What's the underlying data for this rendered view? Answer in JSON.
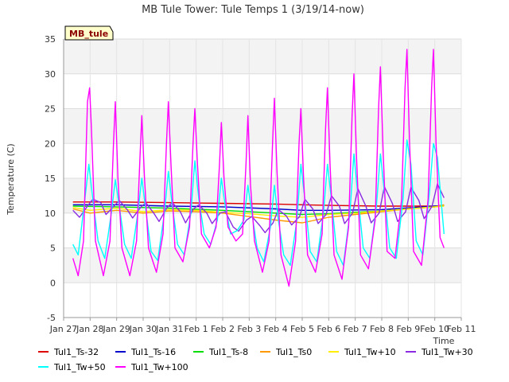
{
  "chart_data": {
    "type": "line",
    "title": "MB Tule Tower: Tule Temps 1 (3/19/14-now)",
    "xlabel": "Time",
    "ylabel": "Temperature (C)",
    "tag": "MB_tule",
    "x_ticks": [
      "Jan 27",
      "Jan 28",
      "Jan 29",
      "Jan 30",
      "Jan 31",
      "Feb 1",
      "Feb 2",
      "Feb 3",
      "Feb 4",
      "Feb 5",
      "Feb 6",
      "Feb 7",
      "Feb 8",
      "Feb 9",
      "Feb 10",
      "Feb 11"
    ],
    "xlim": [
      0,
      15
    ],
    "ylim": [
      -5,
      35
    ],
    "y_ticks": [
      -5,
      0,
      5,
      10,
      15,
      20,
      25,
      30,
      35
    ],
    "grid": true,
    "legend_position": "bottom",
    "series": [
      {
        "name": "Tul1_Ts-32",
        "color": "#dd0000",
        "x": [
          0.35,
          2,
          4,
          6,
          8,
          10,
          12,
          14,
          14.35
        ],
        "y": [
          11.6,
          11.6,
          11.5,
          11.4,
          11.3,
          11.1,
          11.0,
          11.0,
          11.1
        ]
      },
      {
        "name": "Tul1_Ts-16",
        "color": "#0000cc",
        "x": [
          0.35,
          2,
          4,
          6,
          8,
          9,
          10,
          12,
          14,
          14.35
        ],
        "y": [
          11.2,
          11.2,
          11.0,
          10.9,
          10.6,
          10.4,
          10.4,
          10.5,
          11.0,
          11.1
        ]
      },
      {
        "name": "Tul1_Ts-8",
        "color": "#00dd00",
        "x": [
          0.35,
          2,
          4,
          6,
          8,
          9,
          10,
          12,
          14,
          14.35
        ],
        "y": [
          11.0,
          10.9,
          10.7,
          10.4,
          10.0,
          9.8,
          9.9,
          10.3,
          10.9,
          11.1
        ]
      },
      {
        "name": "Tul1_Ts0",
        "color": "#ff9900",
        "x": [
          0.35,
          1,
          2,
          3,
          4,
          5,
          6,
          7,
          8,
          9,
          10,
          11,
          12,
          13,
          14,
          14.35
        ],
        "y": [
          10.6,
          10.0,
          10.4,
          10.0,
          10.3,
          10.2,
          10.0,
          9.5,
          9.0,
          8.6,
          9.4,
          9.8,
          10.2,
          10.6,
          10.9,
          11.2
        ]
      },
      {
        "name": "Tul1_Tw+10",
        "color": "#ffee00",
        "x": [
          0.35,
          1,
          2,
          3,
          4,
          5,
          6,
          7,
          8,
          9,
          10,
          11,
          12,
          13,
          14,
          14.35
        ],
        "y": [
          10.8,
          10.4,
          10.7,
          10.2,
          10.5,
          10.4,
          10.1,
          9.9,
          9.6,
          9.4,
          9.8,
          10.0,
          10.3,
          10.6,
          10.9,
          11.0
        ]
      },
      {
        "name": "Tul1_Tw+30",
        "color": "#8a2be2",
        "x": [
          0.35,
          0.6,
          0.9,
          1.1,
          1.4,
          1.6,
          1.9,
          2.1,
          2.4,
          2.6,
          2.9,
          3.1,
          3.4,
          3.6,
          3.9,
          4.1,
          4.4,
          4.6,
          4.9,
          5.1,
          5.4,
          5.6,
          5.9,
          6.1,
          6.4,
          6.6,
          6.9,
          7.1,
          7.4,
          7.6,
          7.9,
          8.1,
          8.4,
          8.6,
          8.9,
          9.1,
          9.4,
          9.6,
          9.9,
          10.1,
          10.4,
          10.6,
          10.9,
          11.1,
          11.4,
          11.6,
          11.9,
          12.1,
          12.4,
          12.6,
          12.9,
          13.1,
          13.4,
          13.6,
          13.9,
          14.1,
          14.35
        ],
        "y": [
          10.4,
          9.4,
          11.0,
          12.0,
          11.5,
          9.8,
          11.0,
          11.8,
          10.5,
          9.3,
          10.8,
          11.5,
          10.0,
          8.8,
          10.8,
          11.5,
          10.2,
          8.6,
          10.6,
          11.2,
          10.0,
          8.5,
          10.0,
          10.2,
          8.0,
          7.4,
          9.0,
          9.5,
          8.2,
          7.2,
          8.6,
          10.5,
          9.6,
          8.3,
          9.5,
          12.0,
          10.6,
          8.5,
          9.8,
          12.5,
          11.0,
          8.5,
          10.0,
          13.5,
          11.0,
          8.6,
          10.0,
          13.8,
          11.4,
          8.8,
          10.2,
          13.7,
          11.8,
          9.2,
          11.0,
          14.2,
          12.2
        ]
      },
      {
        "name": "Tul1_Tw+50",
        "color": "#00ffff",
        "x": [
          0.35,
          0.55,
          0.8,
          0.95,
          1.1,
          1.3,
          1.55,
          1.8,
          1.95,
          2.1,
          2.3,
          2.55,
          2.8,
          2.95,
          3.1,
          3.3,
          3.55,
          3.8,
          3.95,
          4.1,
          4.3,
          4.55,
          4.8,
          4.95,
          5.1,
          5.3,
          5.55,
          5.8,
          5.95,
          6.1,
          6.3,
          6.55,
          6.8,
          6.95,
          7.1,
          7.3,
          7.55,
          7.8,
          7.95,
          8.1,
          8.3,
          8.55,
          8.8,
          8.95,
          9.1,
          9.3,
          9.55,
          9.8,
          9.95,
          10.1,
          10.3,
          10.55,
          10.8,
          10.95,
          11.1,
          11.3,
          11.55,
          11.8,
          11.95,
          12.1,
          12.3,
          12.55,
          12.8,
          12.95,
          13.1,
          13.3,
          13.55,
          13.8,
          13.95,
          14.1,
          14.35
        ],
        "y": [
          5.5,
          4.0,
          12.0,
          17.0,
          12.0,
          6.0,
          3.5,
          10.0,
          14.8,
          11.0,
          5.5,
          3.5,
          10.0,
          15.0,
          10.5,
          4.5,
          3.2,
          10.0,
          16.0,
          11.0,
          5.5,
          4.0,
          10.0,
          17.5,
          12.0,
          7.0,
          5.5,
          9.0,
          15.0,
          11.0,
          7.0,
          7.5,
          9.0,
          14.0,
          10.0,
          5.0,
          3.0,
          8.0,
          14.0,
          9.0,
          4.0,
          2.5,
          9.0,
          17.0,
          12.0,
          4.5,
          3.0,
          10.0,
          17.0,
          12.0,
          4.5,
          2.5,
          10.0,
          18.5,
          12.5,
          5.0,
          3.5,
          11.0,
          18.5,
          13.0,
          5.0,
          3.5,
          12.0,
          20.5,
          17.0,
          6.0,
          4.0,
          13.0,
          20.0,
          18.0,
          7.0
        ]
      },
      {
        "name": "Tul1_Tw+100",
        "color": "#ff00ff",
        "x": [
          0.35,
          0.55,
          0.75,
          0.9,
          0.98,
          1.05,
          1.2,
          1.5,
          1.75,
          1.88,
          1.95,
          2.05,
          2.2,
          2.5,
          2.75,
          2.88,
          2.95,
          3.05,
          3.2,
          3.5,
          3.75,
          3.88,
          3.95,
          4.05,
          4.2,
          4.5,
          4.75,
          4.88,
          4.95,
          5.05,
          5.2,
          5.5,
          5.75,
          5.88,
          5.95,
          6.05,
          6.2,
          6.5,
          6.75,
          6.88,
          6.95,
          7.05,
          7.2,
          7.5,
          7.75,
          7.88,
          7.95,
          8.05,
          8.2,
          8.5,
          8.75,
          8.88,
          8.95,
          9.05,
          9.2,
          9.5,
          9.75,
          9.88,
          9.95,
          10.05,
          10.2,
          10.5,
          10.75,
          10.88,
          10.95,
          11.05,
          11.2,
          11.5,
          11.75,
          11.88,
          11.95,
          12.05,
          12.2,
          12.5,
          12.75,
          12.88,
          12.95,
          13.05,
          13.2,
          13.5,
          13.75,
          13.88,
          13.95,
          14.05,
          14.2,
          14.35
        ],
        "y": [
          3.5,
          1.0,
          6.0,
          26.0,
          28.0,
          22.0,
          6.0,
          1.0,
          6.0,
          20.0,
          26.0,
          15.0,
          5.0,
          1.0,
          6.0,
          18.0,
          24.0,
          15.0,
          5.0,
          1.5,
          7.0,
          20.0,
          26.0,
          17.0,
          5.0,
          3.0,
          8.0,
          20.0,
          25.0,
          17.0,
          7.0,
          5.0,
          8.0,
          17.0,
          23.0,
          15.0,
          8.0,
          6.0,
          7.0,
          17.0,
          24.0,
          14.0,
          6.0,
          1.5,
          6.0,
          20.0,
          26.5,
          16.0,
          4.0,
          -0.5,
          6.0,
          20.0,
          25.0,
          15.0,
          4.0,
          1.5,
          7.0,
          22.0,
          28.0,
          17.0,
          4.0,
          0.5,
          8.0,
          24.0,
          30.0,
          18.0,
          4.0,
          2.0,
          9.0,
          25.0,
          31.0,
          19.0,
          4.5,
          3.5,
          12.0,
          28.0,
          33.5,
          20.0,
          4.5,
          2.5,
          12.0,
          28.0,
          33.5,
          20.0,
          6.5,
          5.0
        ]
      }
    ]
  }
}
